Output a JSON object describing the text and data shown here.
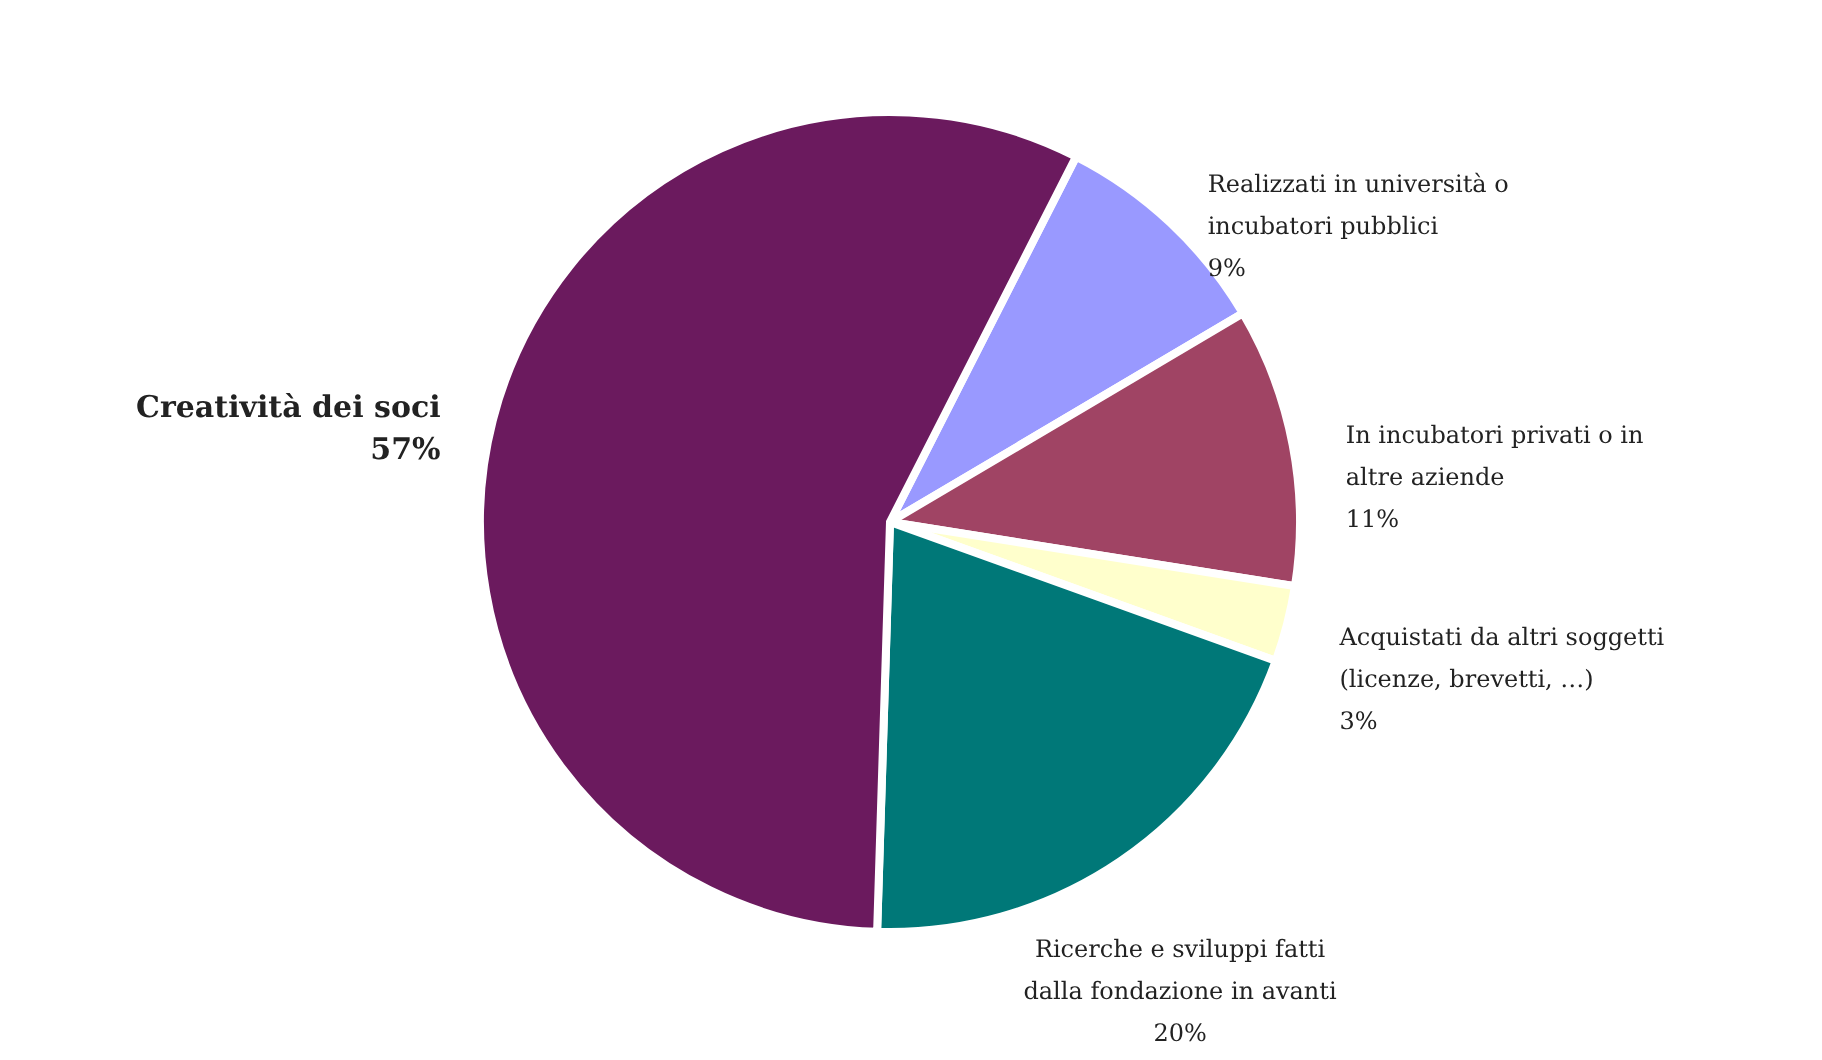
{
  "chart_data": {
    "type": "pie",
    "categories": [
      "Realizzati in università o\nincubatori pubblici",
      "In incubatori privati o in\naltre aziende",
      "Acquistati da altri soggetti\n(licenze, brevetti, …)",
      "Ricerche e sviluppi fatti\ndalla fondazione in avanti",
      "Creatività dei soci"
    ],
    "values": [
      9,
      11,
      3,
      20,
      57
    ],
    "value_labels": [
      "9%",
      "11%",
      "3%",
      "20%",
      "57%"
    ],
    "colors": [
      "#9999ff",
      "#a04464",
      "#ffffcc",
      "#007878",
      "#6b1a5e"
    ]
  }
}
